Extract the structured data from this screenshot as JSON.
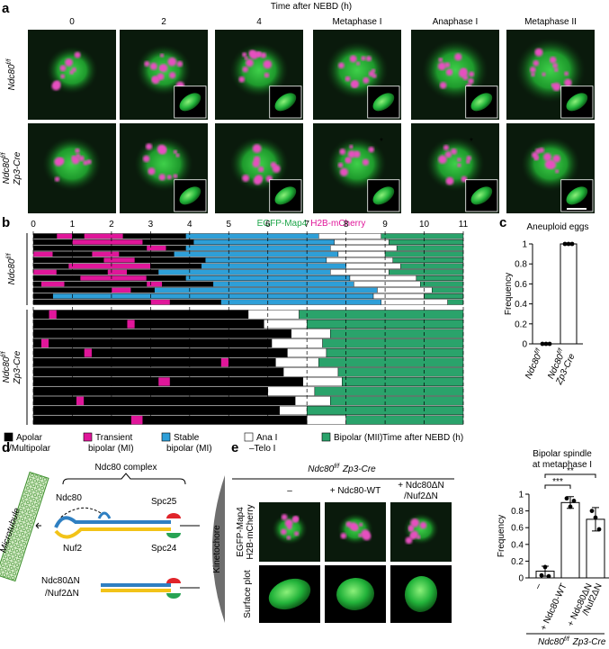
{
  "figure": {
    "panel_a": {
      "label": "a",
      "time_title": "Time after NEBD (h)",
      "columns": [
        "0",
        "2",
        "4",
        "Metaphase I",
        "Anaphase I",
        "Metaphase II"
      ],
      "rows": [
        {
          "gene": "Ndc80",
          "sup": "f/f"
        },
        {
          "gene": "Ndc80",
          "sup": "f/f",
          "driver": "Zp3-Cre"
        }
      ],
      "asterisks": [
        "*",
        "*"
      ],
      "stain": [
        {
          "name": "EGFP-Map4",
          "color": "#1fa64a"
        },
        {
          "name": "H2B-mCherry",
          "color": "#e0169a"
        }
      ]
    },
    "panel_d": {
      "label": "d",
      "complex": "Ndc80 complex",
      "microtubule": "Microtubule",
      "ndc80": "Ndc80",
      "nuf2": "Nuf2",
      "spc25": "Spc25",
      "spc24": "Spc24",
      "kinetochore": "Kinetochore",
      "ndc80_dn": "Ndc80ΔN",
      "nuf2_dn": "/Nuf2ΔN"
    },
    "panel_e_images": {
      "header": {
        "gene": "Ndc80",
        "sup": "f/f",
        "driver": "Zp3-Cre"
      },
      "columns": [
        [
          "–"
        ],
        [
          "+ Ndc80-WT"
        ],
        [
          "+ Ndc80ΔN",
          "/Nuf2ΔN"
        ]
      ],
      "row_labels": [
        [
          "EGFP-Map4",
          "H2B-mCherry"
        ],
        [
          "Surface plot"
        ]
      ]
    }
  },
  "chart_data": [
    {
      "type": "timeline",
      "label": "b",
      "xlim": [
        0,
        11
      ],
      "xticks": [
        0,
        1,
        2,
        3,
        4,
        5,
        6,
        7,
        8,
        9,
        10,
        11
      ],
      "xlabel": "Time after NEBD (h)",
      "grid": true,
      "states": [
        {
          "name": [
            "Apolar",
            "/Multipolar"
          ],
          "color": "#000000"
        },
        {
          "name": [
            "Transient",
            "bipolar (MI)"
          ],
          "color": "#e0169a"
        },
        {
          "name": [
            "Stable",
            "bipolar (MI)"
          ],
          "color": "#2e9fd8"
        },
        {
          "name": [
            "Ana I",
            "–Telo I"
          ],
          "color": "#ffffff"
        },
        {
          "name": [
            "Bipolar (MII)"
          ],
          "color": "#2aa36b"
        }
      ],
      "groups": [
        {
          "name": {
            "gene": "Ndc80",
            "sup": "f/f"
          },
          "rows": [
            [
              [
                0,
                0,
                0.6
              ],
              [
                1,
                0.6,
                1.0
              ],
              [
                0,
                1.0,
                1.3
              ],
              [
                1,
                1.3,
                2.3
              ],
              [
                0,
                2.3,
                3.9
              ],
              [
                2,
                3.9,
                7.3
              ],
              [
                3,
                7.3,
                8.9
              ],
              [
                4,
                8.9,
                11
              ]
            ],
            [
              [
                0,
                0,
                1.0
              ],
              [
                1,
                1.0,
                2.8
              ],
              [
                0,
                2.8,
                4.1
              ],
              [
                2,
                4.1,
                7.7
              ],
              [
                3,
                7.7,
                9.1
              ],
              [
                4,
                9.1,
                11
              ]
            ],
            [
              [
                0,
                0,
                2.9
              ],
              [
                1,
                2.9,
                3.4
              ],
              [
                0,
                3.4,
                3.9
              ],
              [
                2,
                3.9,
                7.6
              ],
              [
                3,
                7.6,
                9.3
              ],
              [
                4,
                9.3,
                11
              ]
            ],
            [
              [
                1,
                0,
                0.5
              ],
              [
                0,
                0.5,
                1.5
              ],
              [
                1,
                1.5,
                2.2
              ],
              [
                0,
                2.2,
                3.6
              ],
              [
                2,
                3.6,
                7.8
              ],
              [
                3,
                7.8,
                9.0
              ],
              [
                4,
                9.0,
                11
              ]
            ],
            [
              [
                0,
                0,
                1.8
              ],
              [
                1,
                1.8,
                2.6
              ],
              [
                0,
                2.6,
                4.4
              ],
              [
                2,
                4.4,
                7.5
              ],
              [
                3,
                7.5,
                9.2
              ],
              [
                4,
                9.2,
                11
              ]
            ],
            [
              [
                0,
                0,
                0.9
              ],
              [
                1,
                0.9,
                3.0
              ],
              [
                0,
                3.0,
                4.3
              ],
              [
                2,
                4.3,
                8.0
              ],
              [
                3,
                8.0,
                9.4
              ],
              [
                4,
                9.4,
                11
              ]
            ],
            [
              [
                1,
                0,
                0.6
              ],
              [
                0,
                0.6,
                1.9
              ],
              [
                1,
                1.9,
                2.4
              ],
              [
                0,
                2.4,
                3.2
              ],
              [
                2,
                3.2,
                7.6
              ],
              [
                3,
                7.6,
                9.1
              ],
              [
                4,
                9.1,
                11
              ]
            ],
            [
              [
                0,
                0,
                1.2
              ],
              [
                1,
                1.2,
                2.9
              ],
              [
                0,
                2.9,
                3.9
              ],
              [
                2,
                3.9,
                8.1
              ],
              [
                3,
                8.1,
                9.8
              ],
              [
                4,
                9.8,
                11
              ]
            ],
            [
              [
                0,
                0,
                0.2
              ],
              [
                1,
                0.2,
                0.8
              ],
              [
                0,
                0.8,
                2.9
              ],
              [
                1,
                2.9,
                3.3
              ],
              [
                0,
                3.3,
                4.6
              ],
              [
                2,
                4.6,
                8.2
              ],
              [
                3,
                8.2,
                9.9
              ],
              [
                4,
                9.9,
                11
              ]
            ],
            [
              [
                0,
                0,
                2.0
              ],
              [
                1,
                2.0,
                2.5
              ],
              [
                0,
                2.5,
                3.1
              ],
              [
                2,
                3.1,
                8.8
              ],
              [
                3,
                8.8,
                10.2
              ],
              [
                4,
                10.2,
                11
              ]
            ],
            [
              [
                0,
                0,
                0.5
              ],
              [
                2,
                0.5,
                8.7
              ],
              [
                3,
                8.7,
                10.0
              ],
              [
                4,
                10.0,
                11
              ]
            ],
            [
              [
                0,
                0,
                3.0
              ],
              [
                1,
                3.0,
                3.5
              ],
              [
                0,
                3.5,
                4.8
              ],
              [
                2,
                4.8,
                8.9
              ],
              [
                3,
                8.9,
                10.6
              ],
              [
                4,
                10.6,
                11
              ]
            ]
          ]
        },
        {
          "name": {
            "gene": "Ndc80",
            "sup": "f/f",
            "driver": "Zp3-Cre"
          },
          "rows": [
            [
              [
                0,
                0,
                0.4
              ],
              [
                1,
                0.4,
                0.6
              ],
              [
                0,
                0.6,
                5.5
              ],
              [
                3,
                5.5,
                6.8
              ],
              [
                4,
                6.8,
                11
              ]
            ],
            [
              [
                0,
                0,
                2.4
              ],
              [
                1,
                2.4,
                2.6
              ],
              [
                0,
                2.6,
                5.9
              ],
              [
                3,
                5.9,
                7.0
              ],
              [
                4,
                7.0,
                11
              ]
            ],
            [
              [
                0,
                0,
                6.6
              ],
              [
                3,
                6.6,
                7.6
              ],
              [
                4,
                7.6,
                11
              ]
            ],
            [
              [
                0,
                0,
                0.2
              ],
              [
                1,
                0.2,
                0.4
              ],
              [
                0,
                0.4,
                6.1
              ],
              [
                3,
                6.1,
                7.4
              ],
              [
                4,
                7.4,
                11
              ]
            ],
            [
              [
                0,
                0,
                1.3
              ],
              [
                1,
                1.3,
                1.5
              ],
              [
                0,
                1.5,
                6.5
              ],
              [
                3,
                6.5,
                7.5
              ],
              [
                4,
                7.5,
                11
              ]
            ],
            [
              [
                0,
                0,
                4.8
              ],
              [
                1,
                4.8,
                5.0
              ],
              [
                0,
                5.0,
                6.2
              ],
              [
                3,
                6.2,
                7.3
              ],
              [
                4,
                7.3,
                11
              ]
            ],
            [
              [
                0,
                0,
                6.4
              ],
              [
                3,
                6.4,
                7.8
              ],
              [
                4,
                7.8,
                11
              ]
            ],
            [
              [
                0,
                0,
                3.2
              ],
              [
                1,
                3.2,
                3.5
              ],
              [
                0,
                3.5,
                6.9
              ],
              [
                3,
                6.9,
                7.9
              ],
              [
                4,
                7.9,
                11
              ]
            ],
            [
              [
                0,
                0,
                6.0
              ],
              [
                3,
                6.0,
                7.2
              ],
              [
                4,
                7.2,
                11
              ]
            ],
            [
              [
                0,
                0,
                1.1
              ],
              [
                1,
                1.1,
                1.3
              ],
              [
                0,
                1.3,
                6.7
              ],
              [
                3,
                6.7,
                7.6
              ],
              [
                4,
                7.6,
                11
              ]
            ],
            [
              [
                0,
                0,
                6.3
              ],
              [
                3,
                6.3,
                7.0
              ],
              [
                4,
                7.0,
                11
              ]
            ],
            [
              [
                0,
                0,
                2.5
              ],
              [
                1,
                2.5,
                2.8
              ],
              [
                0,
                2.8,
                7.0
              ],
              [
                3,
                7.0,
                8.0
              ],
              [
                4,
                8.0,
                11
              ]
            ]
          ]
        }
      ]
    },
    {
      "type": "bar",
      "label": "c",
      "title": [
        "Aneuploid eggs"
      ],
      "ylabel": "Frequency",
      "categories": [
        {
          "gene": "Ndc80",
          "sup": "f/f"
        },
        {
          "gene": "Ndc80",
          "sup": "f/f",
          "driver": "Zp3-Cre"
        }
      ],
      "values": [
        0,
        1
      ],
      "points": [
        [
          0,
          0,
          0
        ],
        [
          1,
          1,
          1
        ]
      ],
      "color": "#ffffff",
      "ylim": [
        0,
        1
      ],
      "yticks": [
        0,
        0.2,
        0.4,
        0.6,
        0.8,
        1
      ]
    },
    {
      "type": "bar",
      "label": "e",
      "title": [
        "Bipolar spindle",
        "at metaphase I"
      ],
      "ylabel": "Frequency",
      "categories": [
        [
          "–"
        ],
        [
          "+ Ndc80-WT"
        ],
        [
          "+ Ndc80ΔN",
          "/Nuf2ΔN"
        ]
      ],
      "values": [
        0.08,
        0.9,
        0.7
      ],
      "errors": [
        0.06,
        0.07,
        0.14
      ],
      "points": [
        [
          0.03,
          0.13,
          0.02
        ],
        [
          0.95,
          0.85,
          0.92
        ],
        [
          0.8,
          0.72,
          0.58
        ]
      ],
      "color": "#ffffff",
      "brackets": [
        {
          "label": "***"
        },
        {
          "label": "**"
        }
      ],
      "xlabel": {
        "gene": "Ndc80",
        "sup": "f/f",
        "driver": "Zp3-Cre"
      },
      "ylim": [
        0,
        1
      ],
      "yticks": [
        0,
        0.2,
        0.4,
        0.6,
        0.8,
        1
      ]
    }
  ]
}
